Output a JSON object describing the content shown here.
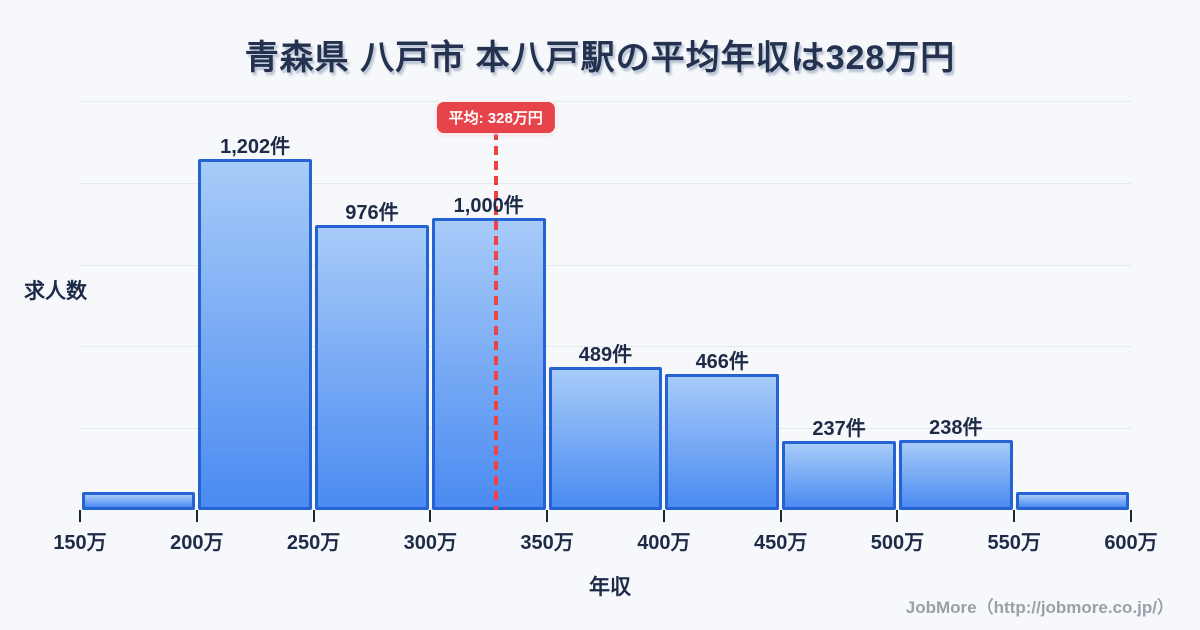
{
  "title": "青森県 八戸市 本八戸駅の平均年収は328万円",
  "average": {
    "label": "平均: 328万円",
    "value": 328
  },
  "axes": {
    "y_label": "求人数",
    "x_label": "年収"
  },
  "footer": {
    "credit": "JobMore（http://jobmore.co.jp/）"
  },
  "colors": {
    "background": "#f7f8fb",
    "title_text": "#24324f",
    "label_text": "#1d2b47",
    "bar_fill_top": "#a8cbf8",
    "bar_fill_bottom": "#4a8bf1",
    "bar_border": "#2563d2",
    "average_badge_red": "#e7434b",
    "average_line_red": "#ee4245",
    "footer_text": "#9aa0a8",
    "gridline": "#e4e9f1"
  },
  "chart_data": {
    "type": "bar",
    "title": "青森県 八戸市 本八戸駅の平均年収は328万円",
    "categories": [
      "150万-200万",
      "200万-250万",
      "250万-300万",
      "300万-350万",
      "350万-400万",
      "400万-450万",
      "450万-500万",
      "500万-550万",
      "550万-600万"
    ],
    "values": [
      60,
      1202,
      976,
      1000,
      489,
      466,
      237,
      238,
      60
    ],
    "bar_labels": [
      "",
      "1,202件",
      "976件",
      "1,000件",
      "489件",
      "466件",
      "237件",
      "238件",
      ""
    ],
    "x_tick_labels": [
      "150万",
      "200万",
      "250万",
      "300万",
      "350万",
      "400万",
      "450万",
      "500万",
      "550万",
      "600万"
    ],
    "xlabel": "年収",
    "ylabel": "求人数",
    "x_range": [
      150,
      600
    ],
    "bin_width": 50,
    "ylim": [
      0,
      1400
    ],
    "grid": "faint horizontal gridlines, no y tick labels",
    "legend": "none",
    "average_line": {
      "x": 328,
      "label": "平均: 328万円"
    }
  }
}
